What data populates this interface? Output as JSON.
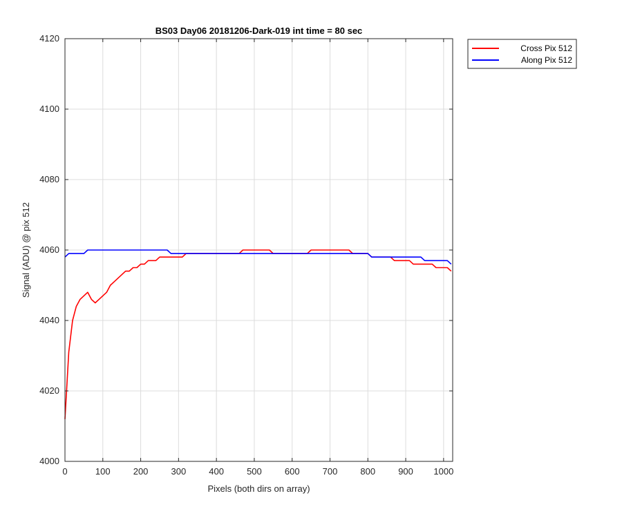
{
  "chart_data": {
    "type": "line",
    "title": "BS03 Day06 20181206-Dark-019 int time = 80 sec",
    "xlabel": "Pixels (both dirs on array)",
    "ylabel": "Signal (ADU) @ pix 512",
    "xlim": [
      0,
      1024
    ],
    "ylim": [
      4000,
      4120
    ],
    "xticks": [
      "0",
      "100",
      "200",
      "300",
      "400",
      "500",
      "600",
      "700",
      "800",
      "900",
      "1000"
    ],
    "yticks": [
      "4000",
      "4020",
      "4040",
      "4060",
      "4080",
      "4100",
      "4120"
    ],
    "grid": true,
    "legend_position": "outside-top-right",
    "series": [
      {
        "name": "Cross Pix 512",
        "color": "#ff0000",
        "x": [
          0,
          10,
          20,
          30,
          40,
          50,
          60,
          70,
          80,
          90,
          100,
          110,
          120,
          130,
          140,
          150,
          160,
          170,
          180,
          190,
          200,
          210,
          220,
          230,
          240,
          250,
          260,
          270,
          280,
          290,
          300,
          310,
          320,
          330,
          340,
          350,
          360,
          370,
          380,
          390,
          400,
          410,
          420,
          430,
          440,
          450,
          460,
          470,
          480,
          490,
          500,
          510,
          520,
          530,
          540,
          550,
          560,
          570,
          580,
          590,
          600,
          610,
          620,
          630,
          640,
          650,
          660,
          670,
          680,
          690,
          700,
          710,
          720,
          730,
          740,
          750,
          760,
          770,
          780,
          790,
          800,
          810,
          820,
          830,
          840,
          850,
          860,
          870,
          880,
          890,
          900,
          910,
          920,
          930,
          940,
          950,
          960,
          970,
          980,
          990,
          1000,
          1010,
          1020
        ],
        "y": [
          4012,
          4031,
          4040,
          4044,
          4046,
          4047,
          4048,
          4046,
          4045,
          4046,
          4047,
          4048,
          4050,
          4051,
          4052,
          4053,
          4054,
          4054,
          4055,
          4055,
          4056,
          4056,
          4057,
          4057,
          4057,
          4058,
          4058,
          4058,
          4058,
          4058,
          4058,
          4058,
          4059,
          4059,
          4059,
          4059,
          4059,
          4059,
          4059,
          4059,
          4059,
          4059,
          4059,
          4059,
          4059,
          4059,
          4059,
          4060,
          4060,
          4060,
          4060,
          4060,
          4060,
          4060,
          4060,
          4059,
          4059,
          4059,
          4059,
          4059,
          4059,
          4059,
          4059,
          4059,
          4059,
          4060,
          4060,
          4060,
          4060,
          4060,
          4060,
          4060,
          4060,
          4060,
          4060,
          4060,
          4059,
          4059,
          4059,
          4059,
          4059,
          4058,
          4058,
          4058,
          4058,
          4058,
          4058,
          4057,
          4057,
          4057,
          4057,
          4057,
          4056,
          4056,
          4056,
          4056,
          4056,
          4056,
          4055,
          4055,
          4055,
          4055,
          4054
        ]
      },
      {
        "name": "Along Pix 512",
        "color": "#0000ff",
        "x": [
          0,
          10,
          20,
          30,
          40,
          50,
          60,
          70,
          80,
          90,
          100,
          110,
          120,
          130,
          140,
          150,
          160,
          170,
          180,
          190,
          200,
          210,
          220,
          230,
          240,
          250,
          260,
          270,
          280,
          290,
          300,
          310,
          320,
          330,
          340,
          350,
          360,
          370,
          380,
          390,
          400,
          410,
          420,
          430,
          440,
          450,
          460,
          470,
          480,
          490,
          500,
          510,
          520,
          530,
          540,
          550,
          560,
          570,
          580,
          590,
          600,
          610,
          620,
          630,
          640,
          650,
          660,
          670,
          680,
          690,
          700,
          710,
          720,
          730,
          740,
          750,
          760,
          770,
          780,
          790,
          800,
          810,
          820,
          830,
          840,
          850,
          860,
          870,
          880,
          890,
          900,
          910,
          920,
          930,
          940,
          950,
          960,
          970,
          980,
          990,
          1000,
          1010,
          1020
        ],
        "y": [
          4058,
          4059,
          4059,
          4059,
          4059,
          4059,
          4060,
          4060,
          4060,
          4060,
          4060,
          4060,
          4060,
          4060,
          4060,
          4060,
          4060,
          4060,
          4060,
          4060,
          4060,
          4060,
          4060,
          4060,
          4060,
          4060,
          4060,
          4060,
          4059,
          4059,
          4059,
          4059,
          4059,
          4059,
          4059,
          4059,
          4059,
          4059,
          4059,
          4059,
          4059,
          4059,
          4059,
          4059,
          4059,
          4059,
          4059,
          4059,
          4059,
          4059,
          4059,
          4059,
          4059,
          4059,
          4059,
          4059,
          4059,
          4059,
          4059,
          4059,
          4059,
          4059,
          4059,
          4059,
          4059,
          4059,
          4059,
          4059,
          4059,
          4059,
          4059,
          4059,
          4059,
          4059,
          4059,
          4059,
          4059,
          4059,
          4059,
          4059,
          4059,
          4058,
          4058,
          4058,
          4058,
          4058,
          4058,
          4058,
          4058,
          4058,
          4058,
          4058,
          4058,
          4058,
          4058,
          4057,
          4057,
          4057,
          4057,
          4057,
          4057,
          4057,
          4056
        ]
      }
    ]
  }
}
